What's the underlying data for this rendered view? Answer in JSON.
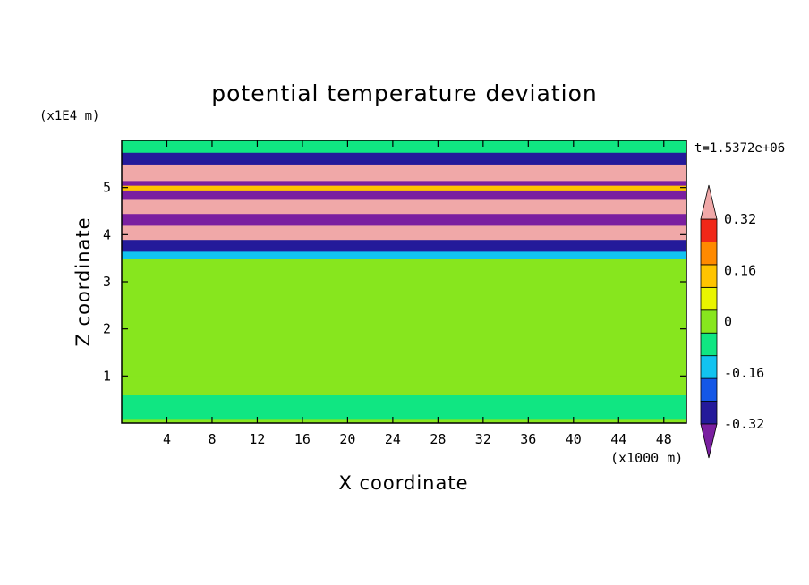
{
  "chart_data": {
    "type": "heatmap",
    "title": "potential temperature deviation",
    "xlabel": "X coordinate",
    "ylabel": "Z coordinate",
    "x_unit": "(x1000 m)",
    "y_unit": "(x1E4 m)",
    "time_label": "t=1.5372e+06",
    "xlim": [
      0,
      50
    ],
    "ylim": [
      0,
      6
    ],
    "x_ticks": [
      4,
      8,
      12,
      16,
      20,
      24,
      28,
      32,
      36,
      40,
      44,
      48
    ],
    "y_ticks": [
      1,
      2,
      3,
      4,
      5
    ],
    "colorbar": {
      "levels": [
        -0.4,
        -0.32,
        -0.24,
        -0.16,
        -0.08,
        0,
        0.08,
        0.16,
        0.24,
        0.32,
        0.4
      ],
      "tick_labels": [
        "0.32",
        "0.16",
        "0",
        "-0.16",
        "-0.32"
      ],
      "tick_values": [
        0.32,
        0.16,
        0,
        -0.16,
        -0.32
      ],
      "colors_low_to_high": [
        "#7a1fa0",
        "#241a9a",
        "#1457e6",
        "#12c3f0",
        "#10e682",
        "#87e61e",
        "#eaf500",
        "#ffc400",
        "#ff8a00",
        "#f02818",
        "#f0a8a8"
      ],
      "extend": "both"
    },
    "bands": [
      {
        "z": [
          0.0,
          0.1
        ],
        "class": 5
      },
      {
        "z": [
          0.1,
          0.6
        ],
        "class": 4
      },
      {
        "z": [
          0.6,
          1.0
        ],
        "class": 5
      },
      {
        "z": [
          1.0,
          3.5
        ],
        "class": 5
      },
      {
        "z": [
          3.5,
          3.65
        ],
        "class": 3
      },
      {
        "z": [
          3.65,
          3.9
        ],
        "class": 1
      },
      {
        "z": [
          3.9,
          4.2
        ],
        "class": 10
      },
      {
        "z": [
          4.2,
          4.45
        ],
        "class": 0
      },
      {
        "z": [
          4.45,
          4.75
        ],
        "class": 10
      },
      {
        "z": [
          4.75,
          4.95
        ],
        "class": 0
      },
      {
        "z": [
          4.95,
          5.05
        ],
        "class": 7
      },
      {
        "z": [
          5.05,
          5.15
        ],
        "class": 0
      },
      {
        "z": [
          5.15,
          5.5
        ],
        "class": 10
      },
      {
        "z": [
          5.5,
          5.75
        ],
        "class": 1
      },
      {
        "z": [
          5.75,
          6.0
        ],
        "class": 4
      }
    ]
  }
}
